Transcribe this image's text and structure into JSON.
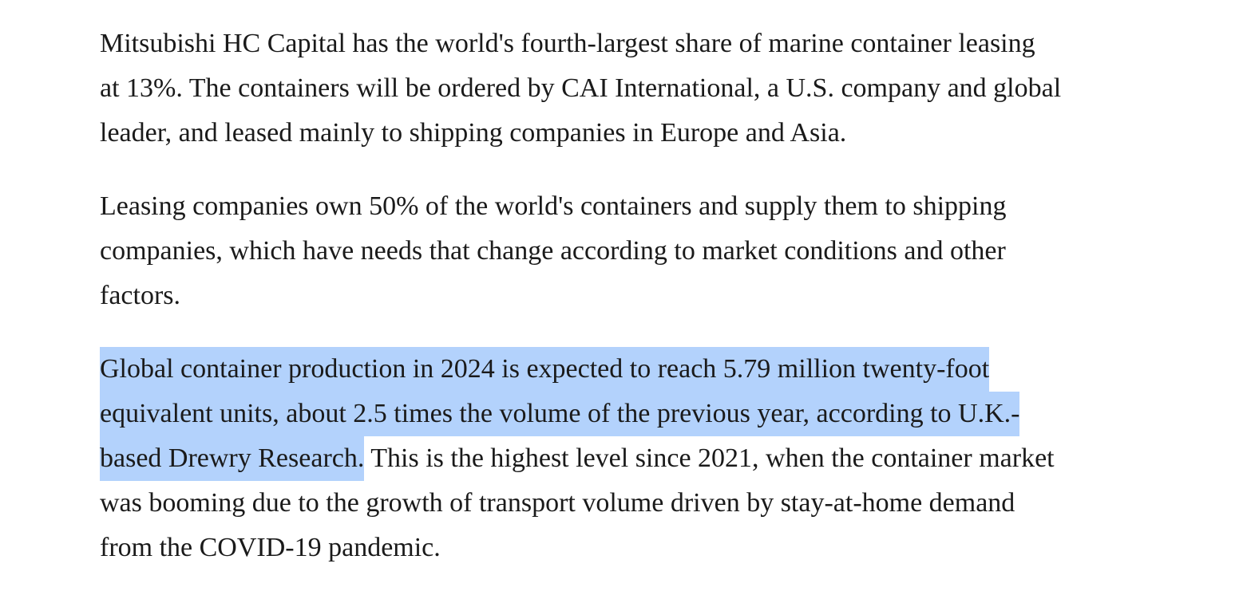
{
  "article": {
    "paragraph1": [
      "Mitsubishi HC Capital has the world's fourth-largest share of marine container leasing",
      "at 13%. The containers will be ordered by CAI International, a U.S. company and global",
      "leader, and leased mainly to shipping companies in Europe and Asia."
    ],
    "paragraph2": [
      "Leasing companies own 50% of the world's containers and supply them to shipping",
      "companies, which have needs that change according to market conditions and other",
      "factors."
    ],
    "paragraph3": {
      "selected": [
        "Global container production in 2024 is expected to reach 5.79 million twenty-foot",
        "equivalent units, about 2.5 times the volume of the previous year, according to U.K.-",
        "based Drewry Research."
      ],
      "unselected": [
        " This is the highest level since 2021, when the container market",
        "was booming due to the growth of transport volume driven by stay-at-home demand",
        "from the COVID-19 pandemic."
      ]
    }
  },
  "colors": {
    "text": "#1a1a1a",
    "selection": "#b3d2fc",
    "background": "#ffffff"
  }
}
